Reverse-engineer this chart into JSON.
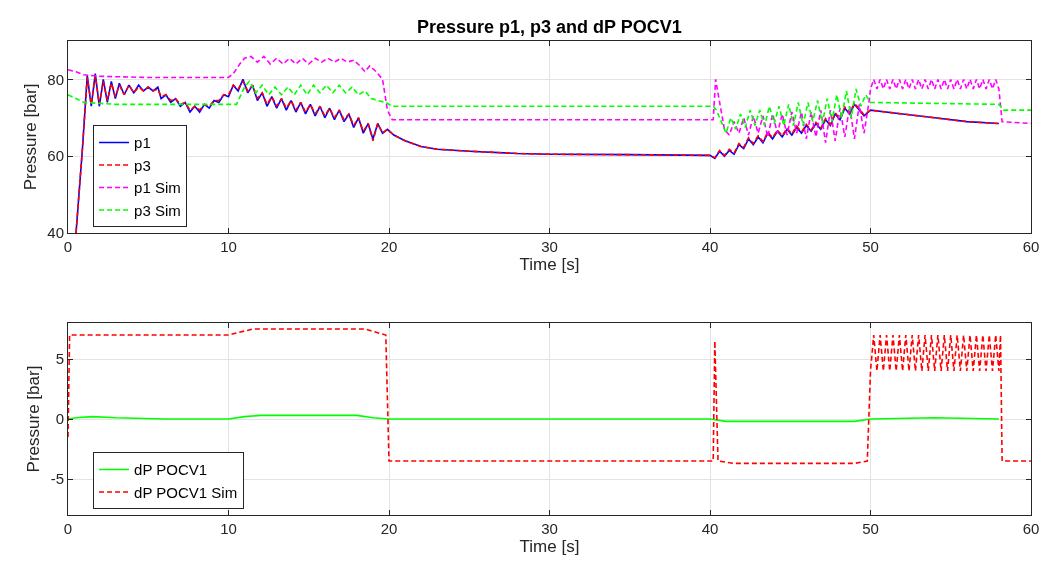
{
  "chart_data": [
    {
      "type": "line",
      "title": "Pressure p1, p3 and dP POCV1",
      "xlabel": "Time [s]",
      "ylabel": "Pressure [bar]",
      "xlim": [
        0,
        60
      ],
      "xticks": [
        0,
        10,
        20,
        30,
        40,
        50,
        60
      ],
      "ylim": [
        40,
        90
      ],
      "yticks": [
        40,
        60,
        80
      ],
      "grid": true,
      "legend": "bottom left",
      "series": [
        {
          "name": "p1",
          "color": "#0000ff",
          "line_style": "solid",
          "x": [
            0.5,
            0.9,
            1.2,
            1.45,
            1.7,
            1.95,
            2.2,
            2.45,
            2.7,
            2.95,
            3.2,
            3.5,
            3.8,
            4.1,
            4.4,
            4.7,
            5.0,
            5.3,
            5.6,
            5.8,
            6.1,
            6.4,
            6.7,
            7.0,
            7.3,
            7.6,
            7.9,
            8.2,
            8.5,
            8.8,
            9.1,
            9.4,
            9.7,
            10.0,
            10.3,
            10.6,
            10.9,
            11.2,
            11.5,
            11.8,
            12.1,
            12.4,
            12.7,
            13.0,
            13.3,
            13.6,
            13.9,
            14.2,
            14.5,
            14.8,
            15.1,
            15.4,
            15.7,
            16.0,
            16.3,
            16.6,
            16.9,
            17.2,
            17.5,
            17.8,
            18.1,
            18.4,
            18.7,
            19.0,
            19.3,
            19.6,
            19.9,
            20.3,
            21,
            22,
            23,
            25,
            28,
            30,
            35,
            40,
            40.3,
            40.6,
            40.9,
            41.2,
            41.5,
            41.8,
            42.1,
            42.4,
            42.7,
            43.0,
            43.3,
            43.6,
            43.9,
            44.2,
            44.5,
            44.8,
            45.1,
            45.4,
            45.7,
            46.0,
            46.3,
            46.6,
            46.9,
            47.2,
            47.5,
            47.8,
            48.1,
            48.4,
            48.7,
            49.0,
            49.3,
            49.6,
            50.0,
            52,
            54,
            56,
            58
          ],
          "values": [
            40,
            62,
            81,
            73,
            81.5,
            73,
            80,
            74,
            79.5,
            75,
            79,
            76,
            78.5,
            76.5,
            78.5,
            77,
            78,
            77,
            78,
            75,
            76,
            74,
            75,
            73,
            74,
            71.5,
            73,
            71.5,
            73.5,
            72.5,
            74.5,
            74,
            76,
            75.5,
            78.5,
            77,
            80,
            76.5,
            78.5,
            74.5,
            76.5,
            73,
            75.5,
            72.5,
            75,
            72,
            74.5,
            71.5,
            74,
            71,
            73.5,
            70.5,
            73,
            70,
            72.5,
            69.5,
            72,
            69,
            71,
            67.5,
            70,
            66,
            68.5,
            64.5,
            68.5,
            66,
            67,
            65.5,
            64,
            62.5,
            61.8,
            61.3,
            60.7,
            60.5,
            60.4,
            60.2,
            59.4,
            61.3,
            60,
            61.5,
            60.5,
            63,
            62,
            64.5,
            63,
            65,
            63.5,
            66,
            64.5,
            66.5,
            65,
            67,
            65.5,
            67.5,
            66,
            68,
            66.5,
            68.5,
            67,
            69.5,
            68,
            71,
            69.5,
            72.5,
            71,
            73.5,
            72,
            70.5,
            72,
            71,
            70,
            69,
            68.5
          ]
        },
        {
          "name": "p3",
          "color": "#ff0000",
          "line_style": "dashed",
          "x": [
            0.5,
            0.9,
            1.2,
            1.45,
            1.7,
            1.95,
            2.2,
            2.45,
            2.7,
            2.95,
            3.2,
            3.5,
            3.8,
            4.1,
            4.4,
            4.7,
            5.0,
            5.3,
            5.6,
            5.8,
            6.1,
            6.4,
            6.7,
            7.0,
            7.3,
            7.6,
            7.9,
            8.2,
            8.5,
            8.8,
            9.1,
            9.4,
            9.7,
            10.0,
            10.3,
            10.6,
            10.9,
            11.2,
            11.5,
            11.8,
            12.1,
            12.4,
            12.7,
            13.0,
            13.3,
            13.6,
            13.9,
            14.2,
            14.5,
            14.8,
            15.1,
            15.4,
            15.7,
            16.0,
            16.3,
            16.6,
            16.9,
            17.2,
            17.5,
            17.8,
            18.1,
            18.4,
            18.7,
            19.0,
            19.3,
            19.6,
            19.9,
            20.3,
            21,
            22,
            23,
            25,
            28,
            30,
            35,
            40,
            40.3,
            40.6,
            40.9,
            41.2,
            41.5,
            41.8,
            42.1,
            42.4,
            42.7,
            43.0,
            43.3,
            43.6,
            43.9,
            44.2,
            44.5,
            44.8,
            45.1,
            45.4,
            45.7,
            46.0,
            46.3,
            46.6,
            46.9,
            47.2,
            47.5,
            47.8,
            48.1,
            48.4,
            48.7,
            49.0,
            49.3,
            49.6,
            50.0,
            52,
            54,
            56,
            58
          ],
          "values": [
            40,
            62,
            80.5,
            73.5,
            81,
            73.5,
            79.5,
            74.5,
            79,
            75.5,
            78.5,
            76,
            78.5,
            76.5,
            78,
            77,
            78,
            77,
            77.5,
            75.5,
            76,
            74.5,
            75,
            73.5,
            74,
            72,
            73,
            72,
            73.5,
            73,
            74.5,
            74.5,
            76,
            76,
            78.5,
            77.5,
            79.5,
            77,
            78.5,
            75,
            76.5,
            73.5,
            75.5,
            73,
            75,
            72.5,
            74.5,
            72,
            74,
            71.5,
            73.5,
            71,
            73,
            70.5,
            72.5,
            70,
            72,
            69.5,
            71,
            68,
            70,
            66.5,
            68.5,
            64,
            68.5,
            66,
            67,
            65.5,
            64,
            62.5,
            61.8,
            61.3,
            60.7,
            60.5,
            60.4,
            60.2,
            59.6,
            61.5,
            60.2,
            61.8,
            60.8,
            63.3,
            62.3,
            64.8,
            63.3,
            65.3,
            63.8,
            66.3,
            64.8,
            66.8,
            65.3,
            67.3,
            65.8,
            67.8,
            66.3,
            68.3,
            66.8,
            68.8,
            67.3,
            69.8,
            68.3,
            71.3,
            69.8,
            72.8,
            71.3,
            73.8,
            72.3,
            70.8,
            72,
            71,
            70,
            69,
            68.5
          ]
        },
        {
          "name": "p1 Sim",
          "color": "#ff00ff",
          "line_style": "dashed",
          "x": [
            0,
            0.5,
            1,
            2,
            5,
            10,
            10.3,
            10.7,
            11,
            11.4,
            11.8,
            12.2,
            12.6,
            13,
            13.4,
            13.8,
            14.2,
            14.6,
            15,
            15.4,
            15.8,
            16.2,
            16.6,
            17,
            17.4,
            17.8,
            18.2,
            18.5,
            18.8,
            19.2,
            19.6,
            19.9,
            20.2,
            30,
            40.2,
            40.35,
            40.6,
            40.9,
            41.2,
            41.5,
            41.8,
            42.1,
            42.4,
            42.7,
            43.0,
            43.3,
            43.6,
            43.9,
            44.2,
            44.5,
            44.8,
            45.1,
            45.4,
            45.7,
            46.0,
            46.3,
            46.6,
            46.9,
            47.2,
            47.5,
            47.8,
            48.1,
            48.4,
            48.7,
            49.0,
            49.3,
            49.6,
            49.9,
            50.0,
            50.2,
            50.4,
            50.6,
            50.8,
            51.0,
            51.2,
            51.4,
            51.6,
            51.8,
            52.0,
            52.2,
            52.4,
            52.6,
            52.8,
            53.0,
            53.2,
            53.4,
            53.6,
            53.8,
            54.0,
            54.2,
            54.4,
            54.6,
            54.8,
            55.0,
            55.2,
            55.4,
            55.6,
            55.8,
            56.0,
            56.2,
            56.4,
            56.6,
            56.8,
            57.0,
            57.2,
            57.4,
            57.6,
            57.8,
            58.0,
            58.2,
            60
          ],
          "values": [
            82.5,
            82,
            81.2,
            80.8,
            80.5,
            80.5,
            81.5,
            84,
            85.5,
            86,
            84.5,
            86,
            84,
            85.5,
            84,
            85.5,
            84,
            85.5,
            84,
            85.5,
            84.5,
            85.5,
            84.5,
            85.5,
            84.5,
            85,
            83.5,
            82,
            83.5,
            82,
            80,
            72,
            69.5,
            69.5,
            69.5,
            80,
            74,
            67,
            65.5,
            69,
            66,
            70,
            65.5,
            70.5,
            66,
            70.5,
            65,
            71,
            66,
            71,
            65.5,
            71.5,
            66,
            71.5,
            64.5,
            71.5,
            65,
            72,
            63.5,
            72,
            64,
            72.5,
            65,
            73,
            64.5,
            73.5,
            66,
            74,
            77.5,
            80,
            77.5,
            80,
            77.5,
            80,
            77.5,
            80,
            77.5,
            80,
            77.5,
            80,
            77.5,
            80,
            77.5,
            80,
            77.5,
            80,
            77.5,
            80,
            77.5,
            80,
            77.5,
            80,
            77.5,
            80,
            77.5,
            80,
            77.5,
            80,
            77.5,
            80,
            77.5,
            80,
            77.5,
            80,
            77.5,
            80,
            77.5,
            80,
            77.5,
            69,
            68.5
          ]
        },
        {
          "name": "p3 Sim",
          "color": "#00ff00",
          "line_style": "dashed",
          "x": [
            0,
            0.5,
            1,
            3,
            10.5,
            11,
            11.3,
            11.7,
            12.1,
            12.5,
            12.9,
            13.3,
            13.7,
            14.1,
            14.5,
            14.9,
            15.3,
            15.7,
            16.1,
            16.5,
            16.9,
            17.3,
            17.7,
            18.1,
            18.5,
            18.9,
            19.3,
            19.8,
            20.2,
            40.2,
            40.4,
            40.7,
            41.0,
            41.3,
            41.6,
            41.9,
            42.2,
            42.5,
            42.8,
            43.1,
            43.4,
            43.7,
            44.0,
            44.3,
            44.6,
            44.9,
            45.2,
            45.5,
            45.8,
            46.1,
            46.4,
            46.7,
            47.0,
            47.3,
            47.6,
            47.9,
            48.2,
            48.5,
            48.8,
            49.1,
            49.4,
            49.7,
            50.0,
            58.0,
            58.3,
            60
          ],
          "values": [
            76,
            75,
            74,
            73.5,
            73.5,
            78,
            79.5,
            76.5,
            78.5,
            76,
            78,
            76,
            78,
            76,
            78.5,
            76,
            78.5,
            76.5,
            78.5,
            76.5,
            78.5,
            76.5,
            78,
            76,
            77,
            75,
            74.5,
            74,
            73,
            73,
            72,
            69,
            66,
            70,
            67,
            71,
            67.5,
            72,
            68,
            72,
            68,
            73,
            68.5,
            73,
            68,
            73.5,
            68,
            74,
            68,
            74,
            69,
            74.5,
            68.5,
            75,
            69,
            76,
            70,
            77,
            70,
            77.5,
            73,
            76,
            74,
            73.5,
            72,
            72
          ]
        }
      ]
    },
    {
      "type": "line",
      "xlabel": "Time [s]",
      "ylabel": "Pressure [bar]",
      "xlim": [
        0,
        60
      ],
      "xticks": [
        0,
        10,
        20,
        30,
        40,
        50,
        60
      ],
      "ylim": [
        -8,
        8
      ],
      "yticks": [
        -5,
        0,
        5
      ],
      "grid": true,
      "legend": "bottom left",
      "series": [
        {
          "name": "dP POCV1",
          "color": "#00ff00",
          "line_style": "solid",
          "x": [
            0,
            0.5,
            1.5,
            3,
            6,
            10,
            11,
            12,
            15,
            18,
            19,
            20,
            30,
            40,
            41,
            45,
            49,
            50,
            54,
            58
          ],
          "values": [
            0,
            0.1,
            0.2,
            0.1,
            0,
            0,
            0.2,
            0.3,
            0.3,
            0.3,
            0.1,
            0,
            0,
            0,
            -0.2,
            -0.2,
            -0.2,
            0,
            0.1,
            0
          ]
        },
        {
          "name": "dP POCV1 Sim",
          "color": "#ff0000",
          "line_style": "dashed",
          "x": [
            0,
            0.1,
            10,
            11.5,
            18.5,
            19.8,
            20,
            40.2,
            40.3,
            40.5,
            41.5,
            49,
            49.8,
            50.0,
            50.2,
            50.4,
            50.6,
            50.8,
            51.0,
            51.2,
            51.4,
            51.6,
            51.8,
            52.0,
            52.2,
            52.4,
            52.6,
            52.8,
            53.0,
            53.2,
            53.4,
            53.6,
            53.8,
            54.0,
            54.2,
            54.4,
            54.6,
            54.8,
            55.0,
            55.2,
            55.4,
            55.6,
            55.8,
            56.0,
            56.2,
            56.4,
            56.6,
            56.8,
            57.0,
            57.2,
            57.4,
            57.6,
            57.8,
            58.0,
            58.1,
            58.2,
            60
          ],
          "values": [
            -1.5,
            7,
            7,
            7.5,
            7.5,
            7,
            -3.5,
            -3.5,
            6.5,
            -3.5,
            -3.7,
            -3.7,
            -3.5,
            4,
            7,
            4,
            7,
            4,
            7,
            4,
            7,
            4,
            7,
            4,
            7,
            4,
            7,
            4,
            7,
            4,
            7,
            4,
            7,
            4,
            7,
            4,
            7,
            4,
            7,
            4,
            7,
            4,
            7,
            4,
            7,
            4,
            7,
            4,
            7,
            4,
            7,
            4,
            7,
            4,
            7,
            -3.5,
            -3.5
          ]
        }
      ]
    }
  ]
}
